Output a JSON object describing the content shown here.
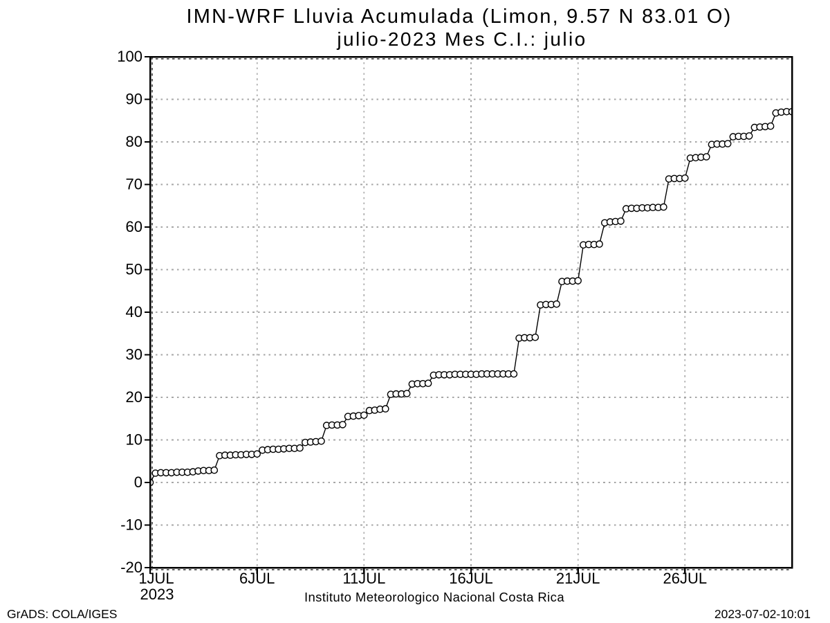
{
  "chart_data": {
    "type": "line",
    "title": "IMN-WRF  Lluvia Acumulada (Limon, 9.57  N 83.01  O)",
    "subtitle": "julio-2023 Mes C.I.: julio",
    "bottom_caption": "Instituto Meteorologico Nacional Costa Rica",
    "credit": "GrADS: COLA/IGES",
    "timestamp": "2023-07-02-10:01",
    "xlabel": "",
    "ylabel": "",
    "xlim": [
      1,
      31
    ],
    "ylim": [
      -20,
      100
    ],
    "grid": true,
    "grid_color": "#a6a6a6",
    "line_color": "#000000",
    "marker": "open-circle",
    "marker_fill": "#ffffff",
    "yticks": [
      -20,
      -10,
      0,
      10,
      20,
      30,
      40,
      50,
      60,
      70,
      80,
      90,
      100
    ],
    "xticks": [
      {
        "day": 1,
        "label": "1JUL",
        "sublabel": "2023"
      },
      {
        "day": 6,
        "label": "6JUL"
      },
      {
        "day": 11,
        "label": "11JUL"
      },
      {
        "day": 16,
        "label": "16JUL"
      },
      {
        "day": 21,
        "label": "21JUL"
      },
      {
        "day": 26,
        "label": "26JUL"
      }
    ],
    "series": [
      {
        "name": "lluvia-acumulada",
        "points": [
          [
            1,
            0
          ],
          [
            1.25,
            2.2
          ],
          [
            1.5,
            2.3
          ],
          [
            1.75,
            2.3
          ],
          [
            2,
            2.3
          ],
          [
            2.25,
            2.4
          ],
          [
            2.5,
            2.4
          ],
          [
            2.75,
            2.4
          ],
          [
            3,
            2.5
          ],
          [
            3.25,
            2.7
          ],
          [
            3.5,
            2.8
          ],
          [
            3.75,
            2.8
          ],
          [
            4,
            2.9
          ],
          [
            4.25,
            6.3
          ],
          [
            4.5,
            6.4
          ],
          [
            4.75,
            6.4
          ],
          [
            5,
            6.5
          ],
          [
            5.25,
            6.5
          ],
          [
            5.5,
            6.6
          ],
          [
            5.75,
            6.6
          ],
          [
            6,
            6.7
          ],
          [
            6.25,
            7.6
          ],
          [
            6.5,
            7.7
          ],
          [
            6.75,
            7.8
          ],
          [
            7,
            7.8
          ],
          [
            7.25,
            7.9
          ],
          [
            7.5,
            8.0
          ],
          [
            7.75,
            8.0
          ],
          [
            8,
            8.1
          ],
          [
            8.25,
            9.4
          ],
          [
            8.5,
            9.5
          ],
          [
            8.75,
            9.6
          ],
          [
            9,
            9.7
          ],
          [
            9.25,
            13.4
          ],
          [
            9.5,
            13.5
          ],
          [
            9.75,
            13.5
          ],
          [
            10,
            13.6
          ],
          [
            10.25,
            15.5
          ],
          [
            10.5,
            15.6
          ],
          [
            10.75,
            15.7
          ],
          [
            11,
            15.8
          ],
          [
            11.25,
            16.9
          ],
          [
            11.5,
            17.0
          ],
          [
            11.75,
            17.2
          ],
          [
            12,
            17.3
          ],
          [
            12.25,
            20.7
          ],
          [
            12.5,
            20.8
          ],
          [
            12.75,
            20.8
          ],
          [
            13,
            20.9
          ],
          [
            13.25,
            23.1
          ],
          [
            13.5,
            23.2
          ],
          [
            13.75,
            23.2
          ],
          [
            14,
            23.3
          ],
          [
            14.25,
            25.2
          ],
          [
            14.5,
            25.3
          ],
          [
            14.75,
            25.3
          ],
          [
            15,
            25.3
          ],
          [
            15.25,
            25.4
          ],
          [
            15.5,
            25.4
          ],
          [
            15.75,
            25.4
          ],
          [
            16,
            25.4
          ],
          [
            16.25,
            25.4
          ],
          [
            16.5,
            25.5
          ],
          [
            16.75,
            25.5
          ],
          [
            17,
            25.5
          ],
          [
            17.25,
            25.5
          ],
          [
            17.5,
            25.5
          ],
          [
            17.75,
            25.5
          ],
          [
            18,
            25.5
          ],
          [
            18.25,
            33.9
          ],
          [
            18.5,
            34.0
          ],
          [
            18.75,
            34.0
          ],
          [
            19,
            34.1
          ],
          [
            19.25,
            41.7
          ],
          [
            19.5,
            41.8
          ],
          [
            19.75,
            41.8
          ],
          [
            20,
            41.9
          ],
          [
            20.25,
            47.2
          ],
          [
            20.5,
            47.3
          ],
          [
            20.75,
            47.3
          ],
          [
            21,
            47.4
          ],
          [
            21.25,
            55.8
          ],
          [
            21.5,
            55.9
          ],
          [
            21.75,
            55.9
          ],
          [
            22,
            56.0
          ],
          [
            22.25,
            61.0
          ],
          [
            22.5,
            61.2
          ],
          [
            22.75,
            61.3
          ],
          [
            23,
            61.4
          ],
          [
            23.25,
            64.3
          ],
          [
            23.5,
            64.4
          ],
          [
            23.75,
            64.4
          ],
          [
            24,
            64.5
          ],
          [
            24.25,
            64.5
          ],
          [
            24.5,
            64.6
          ],
          [
            24.75,
            64.6
          ],
          [
            25,
            64.7
          ],
          [
            25.25,
            71.3
          ],
          [
            25.5,
            71.4
          ],
          [
            25.75,
            71.4
          ],
          [
            26,
            71.5
          ],
          [
            26.25,
            76.2
          ],
          [
            26.5,
            76.3
          ],
          [
            26.75,
            76.4
          ],
          [
            27,
            76.5
          ],
          [
            27.25,
            79.4
          ],
          [
            27.5,
            79.5
          ],
          [
            27.75,
            79.5
          ],
          [
            28,
            79.6
          ],
          [
            28.25,
            81.2
          ],
          [
            28.5,
            81.3
          ],
          [
            28.75,
            81.3
          ],
          [
            29,
            81.4
          ],
          [
            29.25,
            83.4
          ],
          [
            29.5,
            83.5
          ],
          [
            29.75,
            83.6
          ],
          [
            30,
            83.7
          ],
          [
            30.25,
            86.8
          ],
          [
            30.5,
            87.0
          ],
          [
            30.75,
            87.1
          ],
          [
            31,
            87.1
          ]
        ]
      }
    ]
  }
}
